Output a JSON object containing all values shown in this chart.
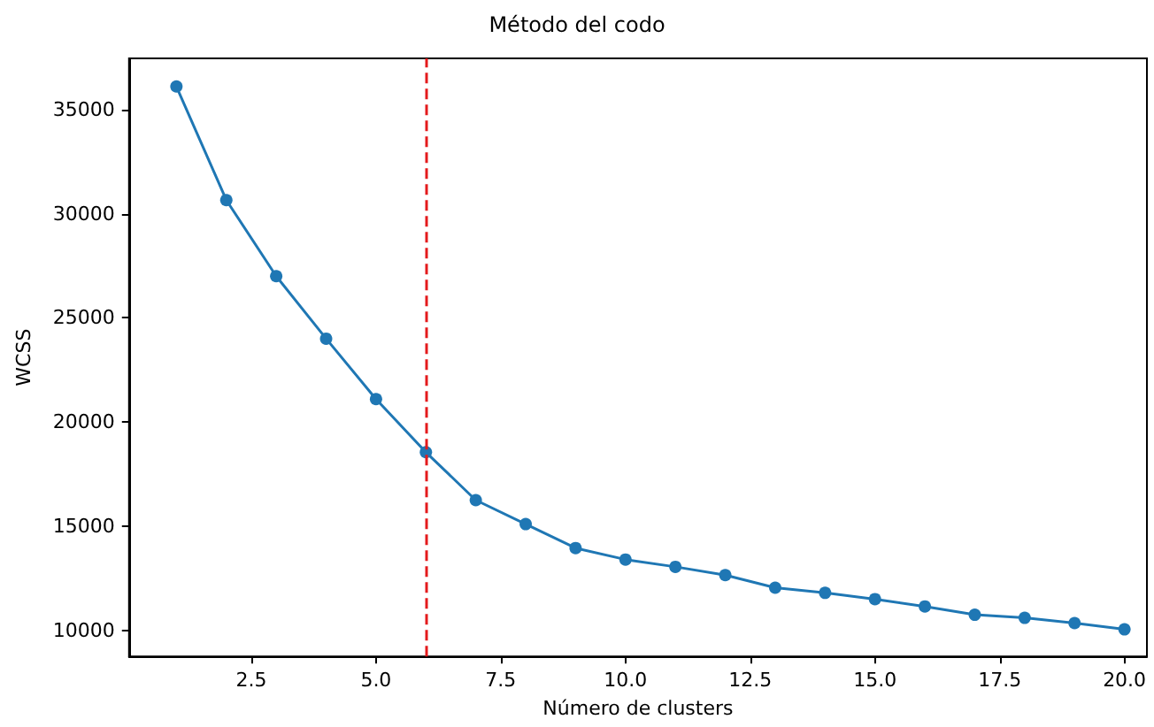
{
  "chart_data": {
    "type": "line",
    "title": "Método del codo",
    "xlabel": "Número de clusters",
    "ylabel": "WCSS",
    "x": [
      1,
      2,
      3,
      4,
      5,
      6,
      7,
      8,
      9,
      10,
      11,
      12,
      13,
      14,
      15,
      16,
      17,
      18,
      19,
      20
    ],
    "series": [
      {
        "color": "#1f77b4",
        "values": [
          36100,
          30650,
          27000,
          24000,
          21100,
          18550,
          16250,
          15100,
          13950,
          13400,
          13050,
          12650,
          12050,
          11800,
          11500,
          11150,
          10750,
          10600,
          10350,
          10050
        ]
      }
    ],
    "marker": "circle",
    "line_style": "solid",
    "grid": false,
    "xlim": [
      0.05,
      20.45
    ],
    "ylim": [
      8750,
      37450
    ],
    "xticks": [
      {
        "value": 2.5,
        "label": "2.5"
      },
      {
        "value": 5,
        "label": "5.0"
      },
      {
        "value": 7.5,
        "label": "7.5"
      },
      {
        "value": 10,
        "label": "10.0"
      },
      {
        "value": 12.5,
        "label": "12.5"
      },
      {
        "value": 15,
        "label": "15.0"
      },
      {
        "value": 17.5,
        "label": "17.5"
      },
      {
        "value": 20,
        "label": "20.0"
      }
    ],
    "yticks": [
      10000,
      15000,
      20000,
      25000,
      30000,
      35000
    ],
    "ref_lines": [
      {
        "axis": "x",
        "value": 6,
        "label": null,
        "color": "#e41a1c",
        "line_style": "dashed"
      }
    ]
  }
}
